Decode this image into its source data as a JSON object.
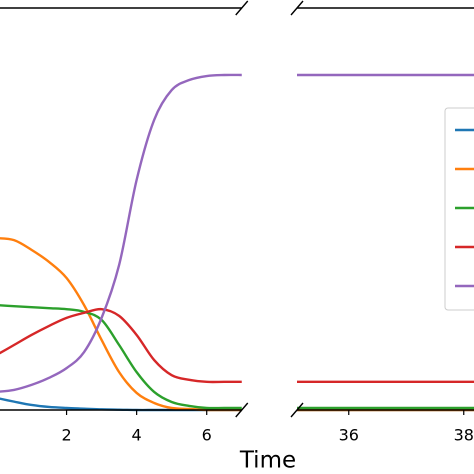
{
  "chart_data": {
    "type": "line",
    "xlabel": "Time",
    "ylim": [
      0,
      1.2
    ],
    "legend": "right",
    "panels": [
      {
        "x": [
          0,
          0.5,
          1,
          1.5,
          2,
          2.5,
          3,
          3.5,
          4,
          4.5,
          5,
          5.5,
          6,
          6.5,
          7
        ],
        "xlim": [
          0,
          7
        ],
        "xticks": [
          2,
          4,
          6
        ],
        "series": [
          {
            "color": "#1f77b4",
            "values": [
              0.036,
              0.025,
              0.015,
              0.009,
              0.006,
              0.004,
              0.002,
              0.001,
              0,
              0,
              0,
              0,
              0,
              0,
              0
            ]
          },
          {
            "color": "#ff7f0e",
            "values": [
              0.513,
              0.507,
              0.478,
              0.442,
              0.394,
              0.313,
              0.209,
              0.113,
              0.051,
              0.021,
              0.006,
              0.003,
              0,
              0,
              0
            ]
          },
          {
            "color": "#2ca02c",
            "values": [
              0.313,
              0.31,
              0.307,
              0.304,
              0.301,
              0.293,
              0.269,
              0.194,
              0.113,
              0.054,
              0.024,
              0.012,
              0.006,
              0.006,
              0.006
            ]
          },
          {
            "color": "#d62728",
            "values": [
              0.164,
              0.194,
              0.224,
              0.251,
              0.275,
              0.29,
              0.301,
              0.281,
              0.224,
              0.149,
              0.104,
              0.09,
              0.084,
              0.084,
              0.084
            ]
          },
          {
            "color": "#9467bd",
            "values": [
              0.054,
              0.06,
              0.075,
              0.096,
              0.125,
              0.173,
              0.275,
              0.433,
              0.687,
              0.866,
              0.955,
              0.985,
              0.997,
              1,
              1
            ]
          }
        ]
      },
      {
        "x": [
          35.1,
          39
        ],
        "xlim": [
          35.1,
          39
        ],
        "xticks": [
          36,
          38
        ],
        "series": [
          {
            "color": "#1f77b4",
            "values": [
              0,
              0
            ]
          },
          {
            "color": "#ff7f0e",
            "values": [
              0,
              0
            ]
          },
          {
            "color": "#2ca02c",
            "values": [
              0.006,
              0.006
            ]
          },
          {
            "color": "#d62728",
            "values": [
              0.084,
              0.084
            ]
          },
          {
            "color": "#9467bd",
            "values": [
              1,
              1
            ]
          }
        ]
      }
    ]
  }
}
